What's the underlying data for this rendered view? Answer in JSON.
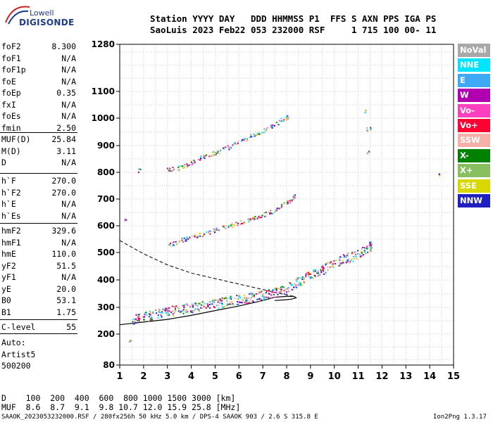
{
  "logo": {
    "line1": "Lowell",
    "line2": "DIGISONDE"
  },
  "header": {
    "line1": "Station YYYY DAY   DDD HHMMSS P1  FFS S AXN PPS IGA PS",
    "line2": "SaoLuis 2023 Feb22 053 232000 RSF     1 715 100 00- 11"
  },
  "params_group1": [
    {
      "name": "foF2",
      "value": "8.300"
    },
    {
      "name": "foF1",
      "value": "N/A"
    },
    {
      "name": "foF1p",
      "value": "N/A"
    },
    {
      "name": "foE",
      "value": "N/A"
    },
    {
      "name": "foEp",
      "value": "0.35"
    },
    {
      "name": "fxI",
      "value": "N/A"
    },
    {
      "name": "foEs",
      "value": "N/A"
    },
    {
      "name": "fmin",
      "value": "2.50"
    }
  ],
  "params_group2": [
    {
      "name": "MUF(D)",
      "value": "25.84"
    },
    {
      "name": "M(D)",
      "value": "3.11"
    },
    {
      "name": "D",
      "value": "N/A"
    }
  ],
  "params_group3": [
    {
      "name": "h`F",
      "value": "270.0"
    },
    {
      "name": "h`F2",
      "value": "270.0"
    },
    {
      "name": "h`E",
      "value": "N/A"
    },
    {
      "name": "h`Es",
      "value": "N/A"
    }
  ],
  "params_group4": [
    {
      "name": "hmF2",
      "value": "329.6"
    },
    {
      "name": "hmF1",
      "value": "N/A"
    },
    {
      "name": "hmE",
      "value": "110.0"
    },
    {
      "name": "yF2",
      "value": "51.5"
    },
    {
      "name": "yF1",
      "value": "N/A"
    },
    {
      "name": "yE",
      "value": "20.0"
    },
    {
      "name": "B0",
      "value": "53.1"
    },
    {
      "name": "B1",
      "value": "1.75"
    }
  ],
  "params_group5": [
    {
      "name": "C-level",
      "value": "55"
    }
  ],
  "auto": {
    "line1": "Auto:",
    "line2": "Artist5",
    "line3": "500200"
  },
  "legend": [
    {
      "label": "NoVal",
      "color": "#a8a8a8"
    },
    {
      "label": "NNE",
      "color": "#00e5ff"
    },
    {
      "label": "E",
      "color": "#3fa9f5"
    },
    {
      "label": "W",
      "color": "#b000b0"
    },
    {
      "label": "Vo-",
      "color": "#ff3fbf"
    },
    {
      "label": "Vo+",
      "color": "#ff0033"
    },
    {
      "label": "SSW",
      "color": "#f4b0a8"
    },
    {
      "label": "X-",
      "color": "#008000"
    },
    {
      "label": "X+",
      "color": "#88c060"
    },
    {
      "label": "SSE",
      "color": "#d8d800"
    },
    {
      "label": "NNW",
      "color": "#2020c0"
    }
  ],
  "bottom": {
    "d_row": "D    100  200  400  600  800 1000 1500 3000 [km]",
    "muf_row": "MUF  8.6  8.7  9.1  9.8 10.7 12.0 15.9 25.8 [MHz]"
  },
  "footer": {
    "left": "SAAOK_2023053232000.RSF / 280fx256h 50 kHz 5.0 km / DPS-4 SAAOK 903 / 2.6 S 315.8 E",
    "right": "Ion2Png 1.3.17"
  },
  "chart_data": {
    "type": "scatter",
    "x_ticks": [
      "1",
      "2",
      "3",
      "4",
      "5",
      "6",
      "7",
      "8",
      "9",
      "10",
      "11",
      "12",
      "13",
      "14",
      "15"
    ],
    "y_ticks": [
      "80",
      "200",
      "300",
      "400",
      "500",
      "600",
      "700",
      "800",
      "900",
      "1000",
      "1100",
      "1280"
    ],
    "xlim": [
      1,
      15
    ],
    "ylim": [
      80,
      1280
    ],
    "grid": true,
    "series": [
      {
        "values": [
          [
            1.5,
            255
          ],
          [
            2,
            265
          ],
          [
            2.5,
            275
          ],
          [
            3,
            285
          ],
          [
            3.5,
            292
          ],
          [
            4,
            300
          ],
          [
            4.5,
            308
          ],
          [
            5,
            315
          ],
          [
            5.5,
            322
          ],
          [
            6,
            330
          ],
          [
            6.5,
            338
          ],
          [
            7,
            345
          ],
          [
            7.5,
            355
          ],
          [
            8,
            370
          ],
          [
            8.5,
            395
          ],
          [
            9,
            420
          ],
          [
            9.5,
            440
          ],
          [
            10,
            465
          ],
          [
            10.5,
            480
          ],
          [
            11,
            495
          ],
          [
            11.5,
            525
          ]
        ]
      },
      {
        "values": [
          [
            3,
            530
          ],
          [
            3.5,
            545
          ],
          [
            4,
            560
          ],
          [
            4.5,
            570
          ],
          [
            5,
            585
          ],
          [
            5.5,
            598
          ],
          [
            6,
            612
          ],
          [
            6.5,
            625
          ],
          [
            7,
            642
          ],
          [
            7.5,
            660
          ],
          [
            8,
            690
          ],
          [
            8.3,
            710
          ]
        ]
      },
      {
        "values": [
          [
            3,
            810
          ],
          [
            3.5,
            820
          ],
          [
            4,
            840
          ],
          [
            4.5,
            860
          ],
          [
            5,
            875
          ],
          [
            5.5,
            895
          ],
          [
            6,
            915
          ],
          [
            6.5,
            935
          ],
          [
            7,
            955
          ],
          [
            7.5,
            980
          ],
          [
            8,
            1005
          ]
        ]
      },
      {
        "values": [
          [
            11.3,
            1030
          ],
          [
            11.35,
            960
          ],
          [
            11.4,
            880
          ],
          [
            11.5,
            965
          ],
          [
            14.4,
            795
          ],
          [
            1.8,
            810
          ],
          [
            1.2,
            625
          ],
          [
            1.4,
            180
          ]
        ]
      }
    ],
    "profile_solid": [
      [
        1,
        235
      ],
      [
        1.5,
        240
      ],
      [
        2,
        245
      ],
      [
        3,
        255
      ],
      [
        4,
        270
      ],
      [
        5,
        288
      ],
      [
        6,
        305
      ],
      [
        7,
        325
      ],
      [
        7.5,
        337
      ],
      [
        8,
        340
      ],
      [
        8.3,
        340
      ],
      [
        8.4,
        335
      ],
      [
        8.2,
        330
      ],
      [
        8,
        328
      ],
      [
        7.5,
        325
      ]
    ],
    "profile_dashed": [
      [
        1,
        545
      ],
      [
        1.5,
        520
      ],
      [
        2,
        495
      ],
      [
        3,
        455
      ],
      [
        4,
        425
      ],
      [
        5,
        405
      ],
      [
        6,
        385
      ],
      [
        7,
        365
      ],
      [
        7.5,
        355
      ],
      [
        8,
        345
      ],
      [
        8.3,
        340
      ]
    ]
  }
}
